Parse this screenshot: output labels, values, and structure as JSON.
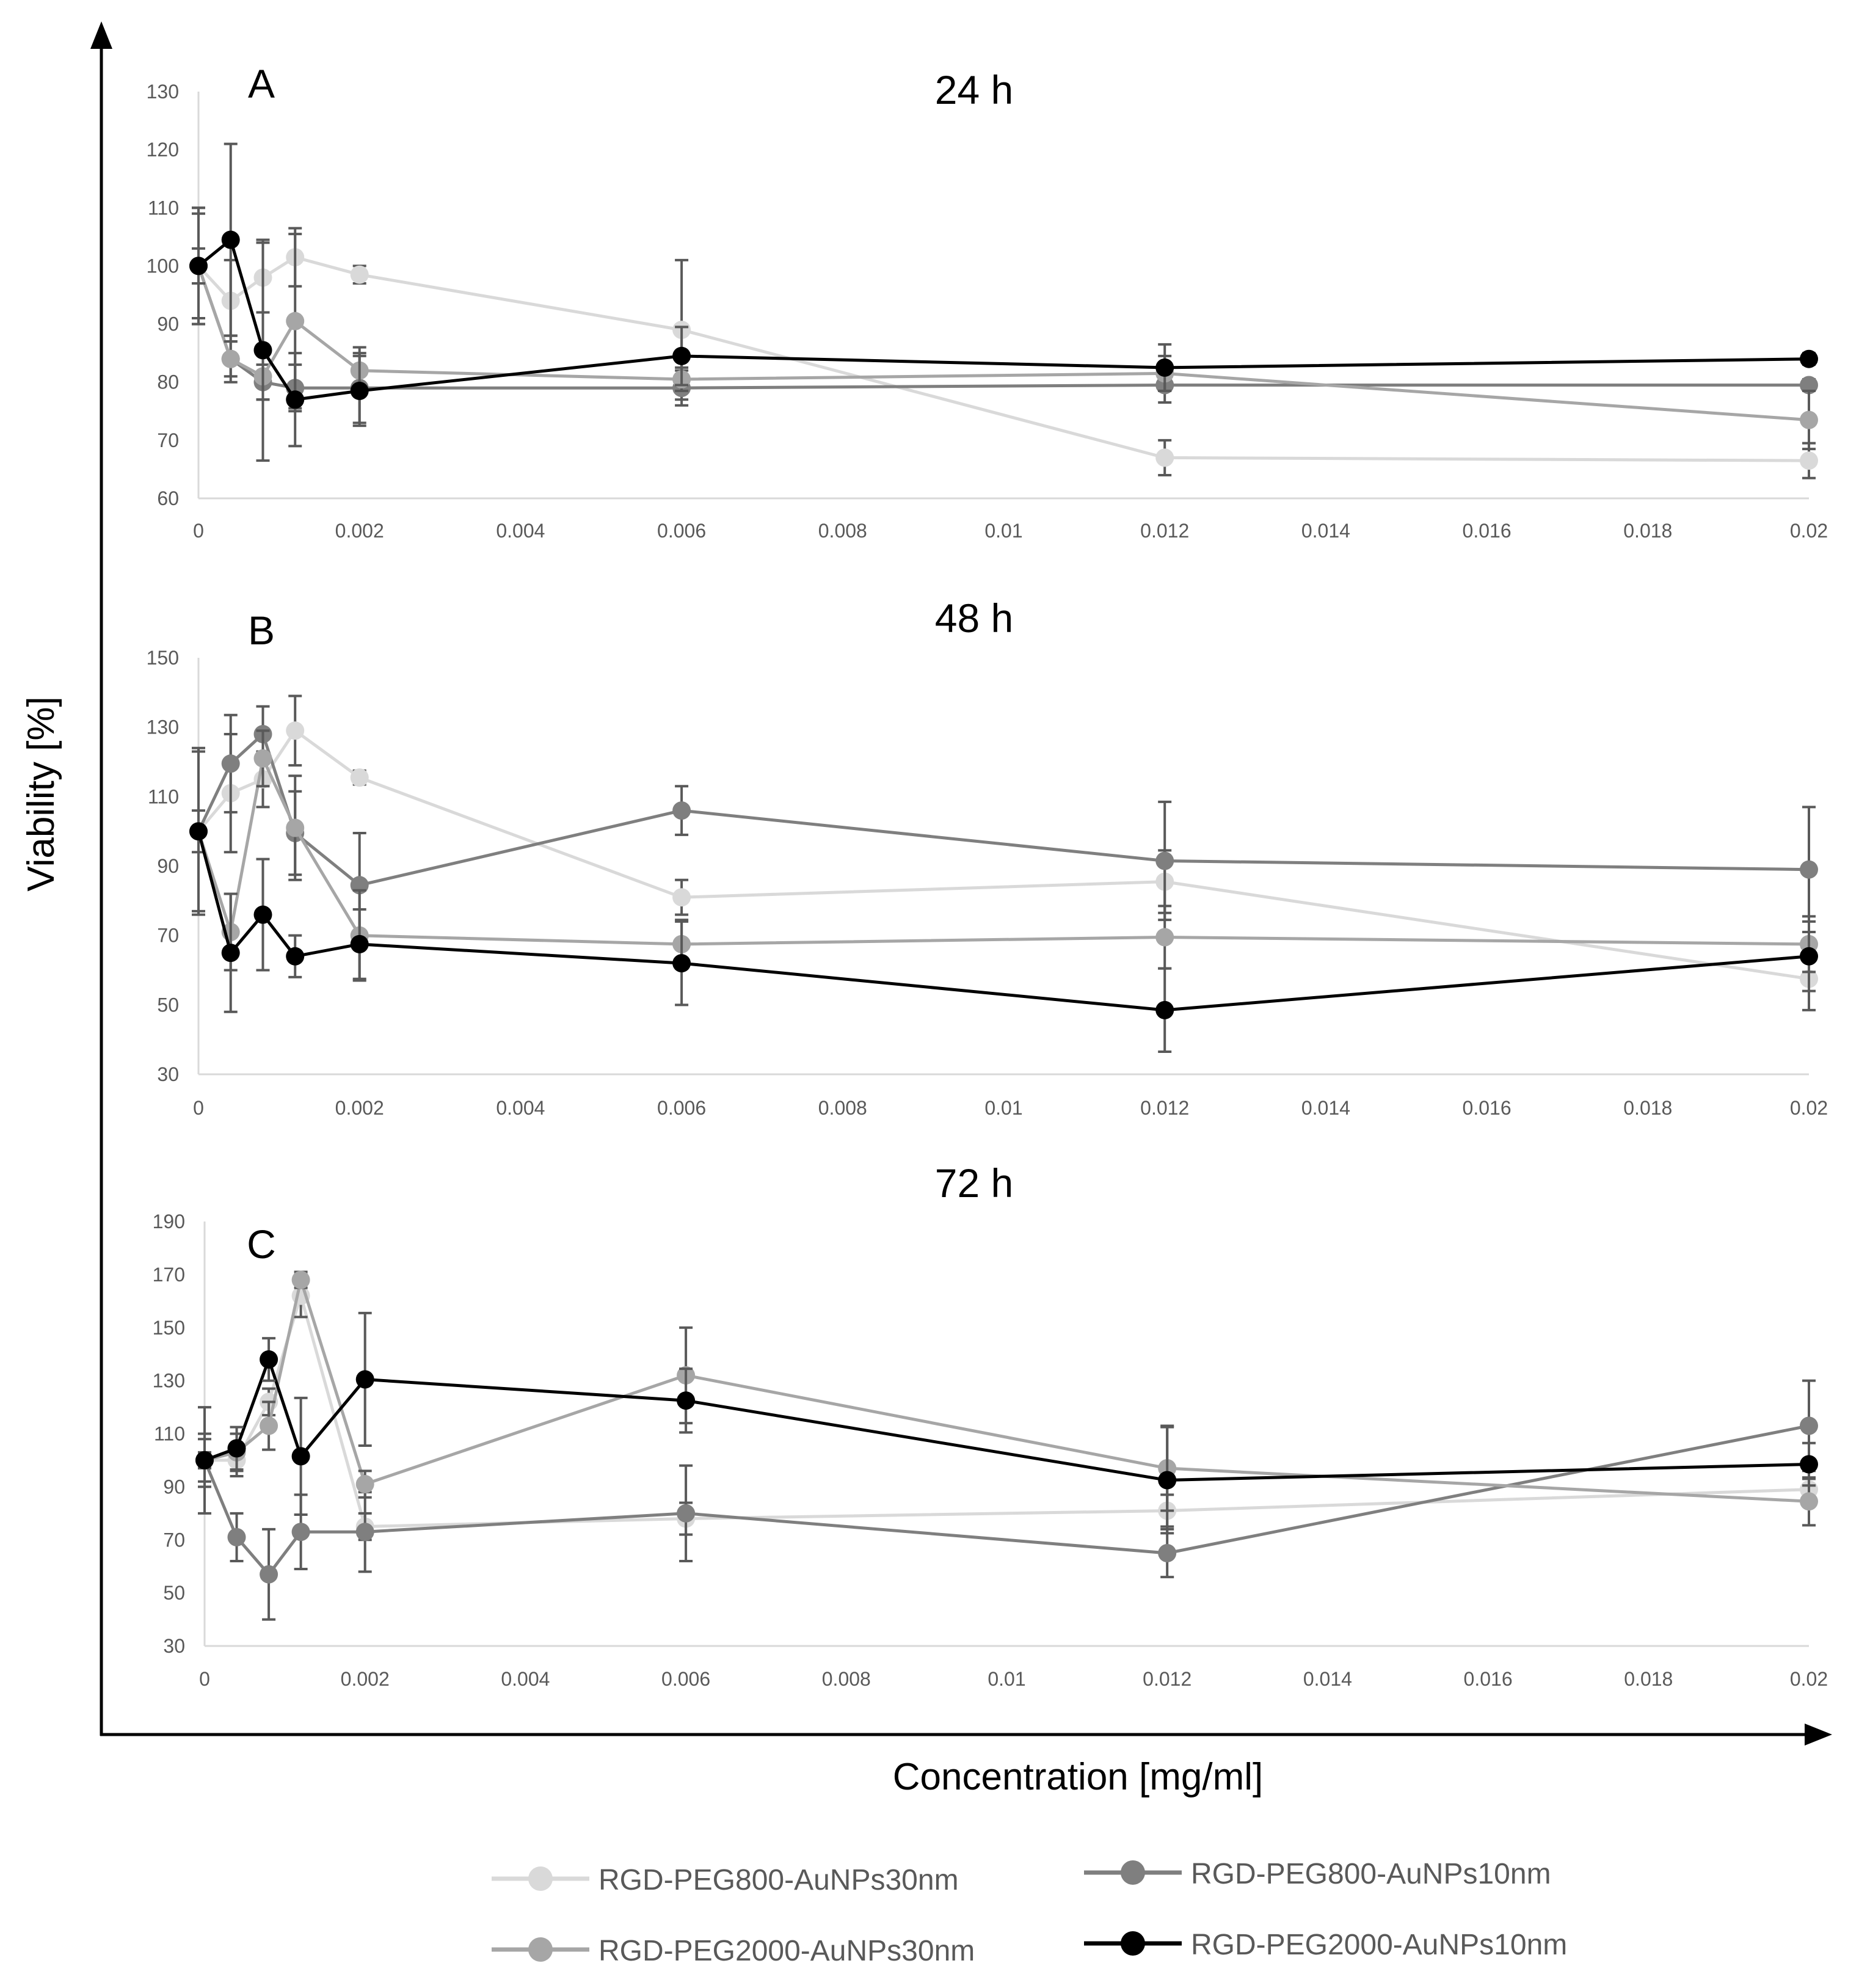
{
  "figure": {
    "xlabel": "Concentration [mg/ml]",
    "ylabel": "Viability [%]"
  },
  "legend": [
    {
      "name": "RGD-PEG800-AuNPs30nm",
      "color": "#d9d9d9"
    },
    {
      "name": "RGD-PEG800-AuNPs10nm",
      "color": "#7f7f7f"
    },
    {
      "name": "RGD-PEG2000-AuNPs30nm",
      "color": "#a6a6a6"
    },
    {
      "name": "RGD-PEG2000-AuNPs10nm",
      "color": "#000000"
    }
  ],
  "chart_data": [
    {
      "type": "line",
      "panel": "A",
      "title": "24 h",
      "x": [
        0,
        0.0004,
        0.0008,
        0.0012,
        0.002,
        0.006,
        0.012,
        0.02
      ],
      "xlim": [
        0,
        0.02
      ],
      "xticks": [
        "0",
        "0.002",
        "0.004",
        "0.006",
        "0.008",
        "0.01",
        "0.012",
        "0.014",
        "0.016",
        "0.018",
        "0.02"
      ],
      "ylim": [
        60,
        130
      ],
      "yticks": [
        "130",
        "120",
        "110",
        "100",
        "90",
        "80",
        "70",
        "60"
      ],
      "series": [
        {
          "name": "RGD-PEG800-AuNPs30nm",
          "color": "#d9d9d9",
          "values": [
            100,
            94,
            98,
            101.5,
            98.5,
            89,
            67,
            66.5
          ],
          "errors": [
            10,
            7,
            6,
            5,
            1.5,
            12,
            3,
            3
          ]
        },
        {
          "name": "RGD-PEG800-AuNPs10nm",
          "color": "#7f7f7f",
          "values": [
            100,
            84,
            80,
            79,
            79,
            79,
            79.5,
            79.5
          ],
          "errors": [
            9,
            4,
            3,
            4,
            6,
            3,
            3,
            1
          ]
        },
        {
          "name": "RGD-PEG2000-AuNPs30nm",
          "color": "#a6a6a6",
          "values": [
            100,
            84,
            81,
            90.5,
            82,
            80.5,
            81.5,
            73.5
          ],
          "errors": [
            10,
            3,
            4,
            15,
            4,
            2,
            3,
            5
          ]
        },
        {
          "name": "RGD-PEG2000-AuNPs10nm",
          "color": "#000000",
          "values": [
            100,
            104.5,
            85.5,
            77,
            78.5,
            84.5,
            82.5,
            84
          ],
          "errors": [
            3,
            16.5,
            19,
            8,
            6,
            5,
            4,
            1
          ]
        }
      ]
    },
    {
      "type": "line",
      "panel": "B",
      "title": "48 h",
      "x": [
        0,
        0.0004,
        0.0008,
        0.0012,
        0.002,
        0.006,
        0.012,
        0.02
      ],
      "xlim": [
        0,
        0.02
      ],
      "xticks": [
        "0",
        "0.002",
        "0.004",
        "0.006",
        "0.008",
        "0.01",
        "0.012",
        "0.014",
        "0.016",
        "0.018",
        "0.02"
      ],
      "ylim": [
        30,
        150
      ],
      "yticks": [
        "150",
        "130",
        "110",
        "90",
        "70",
        "50",
        "30"
      ],
      "series": [
        {
          "name": "RGD-PEG800-AuNPs30nm",
          "color": "#d9d9d9",
          "values": [
            100,
            111,
            115,
            129,
            115.5,
            81,
            85.5,
            57.5
          ],
          "errors": [
            24,
            17,
            8,
            10,
            2,
            5,
            9,
            9
          ]
        },
        {
          "name": "RGD-PEG800-AuNPs10nm",
          "color": "#7f7f7f",
          "values": [
            100,
            119.5,
            128,
            99.5,
            84.5,
            106,
            91.5,
            89
          ],
          "errors": [
            6,
            14,
            8,
            12,
            15,
            7,
            17,
            18
          ]
        },
        {
          "name": "RGD-PEG2000-AuNPs30nm",
          "color": "#a6a6a6",
          "values": [
            100,
            71,
            121,
            101,
            70,
            67.5,
            69.5,
            67.5
          ],
          "errors": [
            23,
            11,
            8,
            15,
            13,
            7,
            9,
            8
          ]
        },
        {
          "name": "RGD-PEG2000-AuNPs10nm",
          "color": "#000000",
          "values": [
            100,
            65,
            76,
            64,
            67.5,
            62,
            48.5,
            64
          ],
          "errors": [
            1,
            17,
            16,
            6,
            10,
            12,
            12,
            10
          ]
        }
      ]
    },
    {
      "type": "line",
      "panel": "C",
      "title": "72 h",
      "x": [
        0,
        0.0004,
        0.0008,
        0.0012,
        0.002,
        0.006,
        0.012,
        0.02
      ],
      "xlim": [
        0,
        0.02
      ],
      "xticks": [
        "0",
        "0.002",
        "0.004",
        "0.006",
        "0.008",
        "0.01",
        "0.012",
        "0.014",
        "0.016",
        "0.018",
        "0.02"
      ],
      "ylim": [
        30,
        190
      ],
      "yticks": [
        "190",
        "170",
        "150",
        "130",
        "110",
        "90",
        "70",
        "50",
        "30"
      ],
      "series": [
        {
          "name": "RGD-PEG800-AuNPs30nm",
          "color": "#d9d9d9",
          "values": [
            100,
            100,
            122,
            162,
            75,
            78,
            81,
            89
          ],
          "errors": [
            8,
            6,
            5,
            8,
            5,
            6,
            6,
            4
          ]
        },
        {
          "name": "RGD-PEG800-AuNPs10nm",
          "color": "#7f7f7f",
          "values": [
            100,
            71,
            57,
            73,
            73,
            80,
            65,
            113
          ],
          "errors": [
            3,
            9,
            17,
            14,
            15,
            18,
            9,
            17
          ]
        },
        {
          "name": "RGD-PEG2000-AuNPs30nm",
          "color": "#a6a6a6",
          "values": [
            100,
            103,
            113,
            168,
            91,
            132,
            97,
            84.5
          ],
          "errors": [
            10,
            7,
            9,
            3,
            5,
            18,
            16,
            9
          ]
        },
        {
          "name": "RGD-PEG2000-AuNPs10nm",
          "color": "#000000",
          "values": [
            100,
            104.5,
            138,
            101.5,
            130.5,
            122.5,
            92.5,
            98.5
          ],
          "errors": [
            20,
            8,
            8,
            22,
            25,
            12,
            20,
            8
          ]
        }
      ]
    }
  ]
}
